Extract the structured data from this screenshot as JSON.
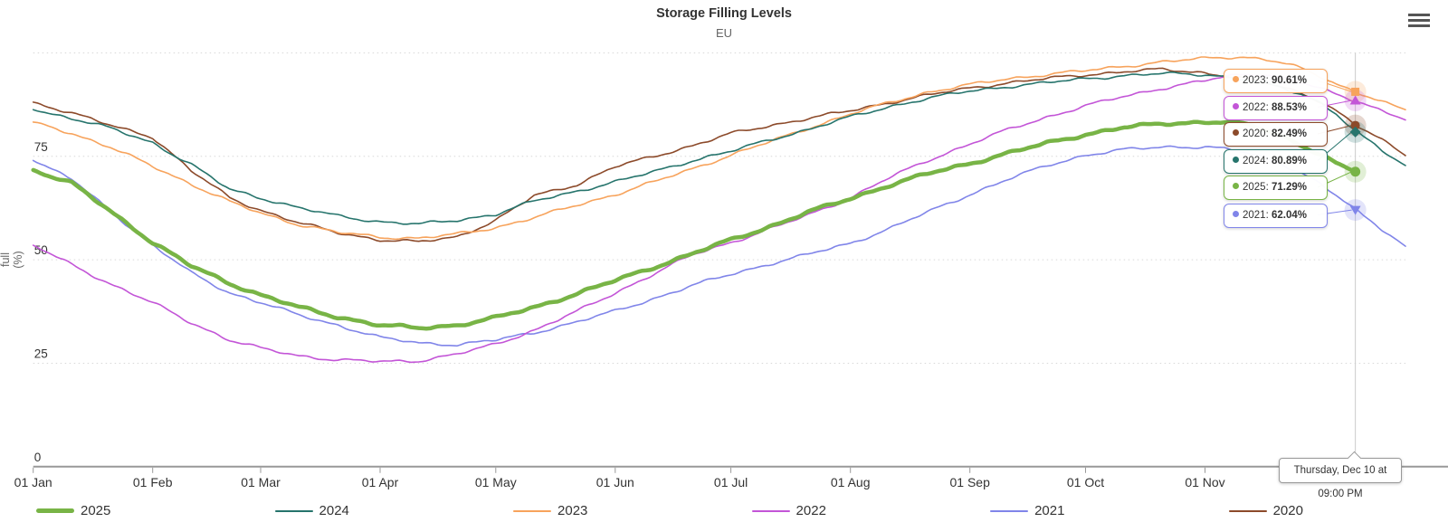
{
  "header": {
    "title": "Storage Filling Levels",
    "subtitle": "EU"
  },
  "menu": {
    "icon": "hamburger-icon"
  },
  "chart_data": {
    "type": "line",
    "title": "Storage Filling Levels",
    "subtitle": "EU",
    "xlabel": "",
    "ylabel": "full (%)",
    "y_axis": {
      "title_lines": [
        "full",
        "(%)"
      ],
      "ticks": [
        0,
        25,
        50,
        75
      ],
      "grid_values": [
        25,
        50,
        75,
        100
      ],
      "min": 0,
      "max": 100,
      "grid": "dotted"
    },
    "x_axis": {
      "tick_labels": [
        "01 Jan",
        "01 Feb",
        "01 Mar",
        "01 Apr",
        "01 May",
        "01 Jun",
        "01 Jul",
        "01 Aug",
        "01 Sep",
        "01 Oct",
        "01 Nov"
      ],
      "tick_days": [
        0,
        31,
        59,
        90,
        120,
        151,
        181,
        212,
        243,
        273,
        304
      ],
      "domain_days": [
        0,
        356
      ]
    },
    "crosshair": {
      "day": 343,
      "label": "Thursday, Dec 10 at 09:00 PM"
    },
    "tooltip_items": [
      {
        "year": "2023",
        "value": "90.61%",
        "numeric": 90.61,
        "color": "#f7a35c"
      },
      {
        "year": "2022",
        "value": "88.53%",
        "numeric": 88.53,
        "color": "#c355d7"
      },
      {
        "year": "2020",
        "value": "82.49%",
        "numeric": 82.49,
        "color": "#8c4a2a"
      },
      {
        "year": "2024",
        "value": "80.89%",
        "numeric": 80.89,
        "color": "#26746c"
      },
      {
        "year": "2025",
        "value": "71.29%",
        "numeric": 71.29,
        "color": "#78b446"
      },
      {
        "year": "2021",
        "value": "62.04%",
        "numeric": 62.04,
        "color": "#8085e9"
      }
    ],
    "series": [
      {
        "name": "2025",
        "color": "#78b446",
        "line_width": 4.5,
        "marker": "circle",
        "points": [
          [
            0,
            71.7
          ],
          [
            10,
            68.5
          ],
          [
            20,
            61.8
          ],
          [
            31,
            54.2
          ],
          [
            41,
            48.5
          ],
          [
            51,
            44.3
          ],
          [
            59,
            41.5
          ],
          [
            69,
            38.5
          ],
          [
            79,
            36.2
          ],
          [
            90,
            34.2
          ],
          [
            100,
            33.5
          ],
          [
            110,
            34.2
          ],
          [
            120,
            36.0
          ],
          [
            130,
            38.5
          ],
          [
            141,
            41.8
          ],
          [
            151,
            45.0
          ],
          [
            161,
            48.2
          ],
          [
            171,
            51.5
          ],
          [
            181,
            54.8
          ],
          [
            191,
            58.0
          ],
          [
            201,
            61.5
          ],
          [
            212,
            64.8
          ],
          [
            222,
            68.0
          ],
          [
            232,
            70.8
          ],
          [
            243,
            73.3
          ],
          [
            253,
            75.8
          ],
          [
            263,
            78.2
          ],
          [
            273,
            80.3
          ],
          [
            283,
            82.0
          ],
          [
            293,
            82.9
          ],
          [
            304,
            83.3
          ],
          [
            309,
            83.3
          ],
          [
            314,
            82.8
          ],
          [
            319,
            81.6
          ],
          [
            324,
            79.9
          ],
          [
            329,
            77.8
          ],
          [
            334,
            75.4
          ],
          [
            338,
            73.3
          ],
          [
            343,
            71.29
          ]
        ]
      },
      {
        "name": "2024",
        "color": "#26746c",
        "line_width": 1.6,
        "marker": "diamond",
        "points": [
          [
            0,
            86.3
          ],
          [
            10,
            84.2
          ],
          [
            20,
            81.8
          ],
          [
            31,
            78.3
          ],
          [
            41,
            73.0
          ],
          [
            51,
            67.0
          ],
          [
            59,
            65.0
          ],
          [
            69,
            62.5
          ],
          [
            79,
            60.6
          ],
          [
            90,
            59.2
          ],
          [
            100,
            58.6
          ],
          [
            110,
            59.6
          ],
          [
            120,
            61.0
          ],
          [
            130,
            64.2
          ],
          [
            141,
            66.6
          ],
          [
            151,
            68.8
          ],
          [
            161,
            71.3
          ],
          [
            171,
            74.0
          ],
          [
            181,
            76.2
          ],
          [
            191,
            79.0
          ],
          [
            201,
            81.5
          ],
          [
            212,
            84.5
          ],
          [
            222,
            87.0
          ],
          [
            232,
            89.0
          ],
          [
            243,
            90.8
          ],
          [
            253,
            91.9
          ],
          [
            263,
            92.8
          ],
          [
            273,
            93.8
          ],
          [
            283,
            94.5
          ],
          [
            293,
            95.0
          ],
          [
            304,
            94.8
          ],
          [
            309,
            94.3
          ],
          [
            314,
            93.6
          ],
          [
            319,
            92.7
          ],
          [
            324,
            91.5
          ],
          [
            329,
            90.0
          ],
          [
            334,
            88.0
          ],
          [
            338,
            85.4
          ],
          [
            343,
            80.89
          ],
          [
            348,
            77.8
          ],
          [
            352,
            75.0
          ],
          [
            356,
            72.8
          ]
        ]
      },
      {
        "name": "2023",
        "color": "#f7a35c",
        "line_width": 1.6,
        "marker": "square",
        "points": [
          [
            0,
            83.3
          ],
          [
            10,
            80.6
          ],
          [
            20,
            77.2
          ],
          [
            31,
            72.6
          ],
          [
            41,
            68.3
          ],
          [
            51,
            64.0
          ],
          [
            59,
            61.3
          ],
          [
            69,
            58.5
          ],
          [
            79,
            56.6
          ],
          [
            90,
            55.5
          ],
          [
            100,
            55.2
          ],
          [
            110,
            56.2
          ],
          [
            120,
            57.8
          ],
          [
            130,
            60.2
          ],
          [
            141,
            63.2
          ],
          [
            151,
            65.8
          ],
          [
            161,
            68.8
          ],
          [
            171,
            72.0
          ],
          [
            181,
            75.3
          ],
          [
            191,
            78.5
          ],
          [
            201,
            81.8
          ],
          [
            212,
            85.2
          ],
          [
            222,
            88.0
          ],
          [
            232,
            90.5
          ],
          [
            243,
            92.3
          ],
          [
            253,
            93.8
          ],
          [
            263,
            94.8
          ],
          [
            273,
            95.7
          ],
          [
            283,
            96.8
          ],
          [
            293,
            97.8
          ],
          [
            304,
            98.7
          ],
          [
            309,
            99.0
          ],
          [
            314,
            99.0
          ],
          [
            319,
            98.5
          ],
          [
            324,
            97.6
          ],
          [
            329,
            96.2
          ],
          [
            334,
            94.3
          ],
          [
            338,
            92.6
          ],
          [
            343,
            90.61
          ],
          [
            348,
            88.9
          ],
          [
            352,
            87.5
          ],
          [
            356,
            86.3
          ]
        ]
      },
      {
        "name": "2022",
        "color": "#c355d7",
        "line_width": 1.6,
        "marker": "triangle-up",
        "points": [
          [
            0,
            53.5
          ],
          [
            10,
            48.8
          ],
          [
            20,
            44.2
          ],
          [
            31,
            39.6
          ],
          [
            41,
            34.8
          ],
          [
            51,
            30.6
          ],
          [
            59,
            28.6
          ],
          [
            69,
            26.8
          ],
          [
            79,
            25.8
          ],
          [
            90,
            25.4
          ],
          [
            100,
            25.6
          ],
          [
            110,
            27.2
          ],
          [
            120,
            29.6
          ],
          [
            130,
            33.0
          ],
          [
            141,
            37.5
          ],
          [
            151,
            42.0
          ],
          [
            161,
            46.6
          ],
          [
            171,
            51.2
          ],
          [
            181,
            54.2
          ],
          [
            191,
            57.4
          ],
          [
            201,
            60.8
          ],
          [
            212,
            65.0
          ],
          [
            222,
            69.8
          ],
          [
            232,
            74.0
          ],
          [
            243,
            78.0
          ],
          [
            253,
            81.5
          ],
          [
            263,
            84.5
          ],
          [
            273,
            87.2
          ],
          [
            283,
            89.5
          ],
          [
            293,
            91.5
          ],
          [
            304,
            93.3
          ],
          [
            309,
            94.2
          ],
          [
            314,
            94.8
          ],
          [
            319,
            94.9
          ],
          [
            324,
            94.0
          ],
          [
            329,
            92.8
          ],
          [
            334,
            91.3
          ],
          [
            338,
            90.0
          ],
          [
            343,
            88.53
          ],
          [
            348,
            86.8
          ],
          [
            352,
            85.3
          ],
          [
            356,
            83.8
          ]
        ]
      },
      {
        "name": "2021",
        "color": "#8085e9",
        "line_width": 1.6,
        "marker": "triangle-down",
        "points": [
          [
            0,
            74.0
          ],
          [
            10,
            69.5
          ],
          [
            20,
            61.8
          ],
          [
            31,
            53.5
          ],
          [
            41,
            46.8
          ],
          [
            51,
            42.0
          ],
          [
            59,
            39.7
          ],
          [
            69,
            36.6
          ],
          [
            79,
            34.2
          ],
          [
            90,
            31.2
          ],
          [
            100,
            29.9
          ],
          [
            110,
            29.5
          ],
          [
            120,
            30.6
          ],
          [
            130,
            32.4
          ],
          [
            141,
            35.0
          ],
          [
            151,
            37.6
          ],
          [
            161,
            40.6
          ],
          [
            171,
            43.8
          ],
          [
            181,
            46.5
          ],
          [
            191,
            49.0
          ],
          [
            201,
            51.3
          ],
          [
            212,
            54.0
          ],
          [
            222,
            57.5
          ],
          [
            232,
            61.5
          ],
          [
            243,
            65.8
          ],
          [
            253,
            69.5
          ],
          [
            263,
            72.8
          ],
          [
            273,
            75.3
          ],
          [
            283,
            76.6
          ],
          [
            293,
            77.3
          ],
          [
            304,
            77.3
          ],
          [
            309,
            76.8
          ],
          [
            314,
            76.0
          ],
          [
            319,
            74.8
          ],
          [
            324,
            73.2
          ],
          [
            329,
            71.0
          ],
          [
            334,
            68.3
          ],
          [
            338,
            65.5
          ],
          [
            343,
            62.04
          ],
          [
            348,
            58.8
          ],
          [
            352,
            56.0
          ],
          [
            356,
            53.3
          ]
        ]
      },
      {
        "name": "2020",
        "color": "#8c4a2a",
        "line_width": 1.6,
        "marker": "circle",
        "points": [
          [
            0,
            88.1
          ],
          [
            10,
            85.5
          ],
          [
            20,
            82.5
          ],
          [
            31,
            79.7
          ],
          [
            41,
            71.5
          ],
          [
            51,
            65.0
          ],
          [
            59,
            62.0
          ],
          [
            69,
            58.9
          ],
          [
            79,
            56.6
          ],
          [
            90,
            54.8
          ],
          [
            100,
            54.3
          ],
          [
            110,
            55.6
          ],
          [
            120,
            59.5
          ],
          [
            130,
            65.5
          ],
          [
            141,
            68.2
          ],
          [
            151,
            72.5
          ],
          [
            161,
            75.0
          ],
          [
            171,
            77.6
          ],
          [
            181,
            80.5
          ],
          [
            191,
            82.4
          ],
          [
            201,
            84.2
          ],
          [
            212,
            86.0
          ],
          [
            222,
            88.0
          ],
          [
            232,
            89.8
          ],
          [
            243,
            91.5
          ],
          [
            253,
            92.8
          ],
          [
            263,
            93.8
          ],
          [
            273,
            94.7
          ],
          [
            283,
            95.5
          ],
          [
            293,
            96.0
          ],
          [
            304,
            95.2
          ],
          [
            309,
            94.5
          ],
          [
            314,
            93.8
          ],
          [
            319,
            92.9
          ],
          [
            324,
            91.8
          ],
          [
            329,
            90.3
          ],
          [
            334,
            88.3
          ],
          [
            338,
            86.0
          ],
          [
            343,
            82.49
          ],
          [
            348,
            80.0
          ],
          [
            352,
            77.8
          ],
          [
            356,
            75.2
          ]
        ]
      }
    ],
    "legend": [
      "2025",
      "2024",
      "2023",
      "2022",
      "2021",
      "2020"
    ],
    "legend_position": "bottom"
  }
}
